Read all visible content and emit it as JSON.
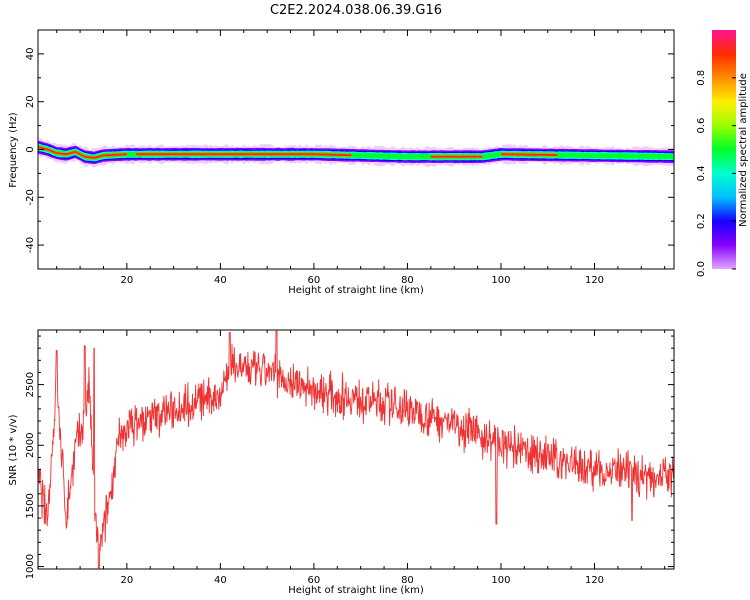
{
  "title": "C2E2.2024.038.06.39.G16",
  "chart_data": [
    {
      "type": "heatmap",
      "xlabel": "Height of straight line (km)",
      "ylabel": "Frequency (Hz)",
      "xlim": [
        1,
        137
      ],
      "ylim": [
        -50,
        50
      ],
      "x_ticks": [
        20,
        40,
        60,
        80,
        100,
        120
      ],
      "y_ticks": [
        -40,
        -20,
        0,
        20,
        40
      ],
      "colorbar": {
        "label": "Normalized spectral amplitude",
        "range": [
          0,
          1
        ],
        "ticks": [
          "0.0",
          "0.2",
          "0.4",
          "0.6",
          "0.8"
        ],
        "colormap": "gist_ncar",
        "colors": [
          "#dfa8ff",
          "#8a00ff",
          "#1500ff",
          "#00bfff",
          "#00ffd0",
          "#00ff2a",
          "#9aff00",
          "#ffee00",
          "#ff8c00",
          "#ff2a00",
          "#ff1493"
        ]
      },
      "band": {
        "center_hz": [
          {
            "x": 1,
            "y": 1
          },
          {
            "x": 3,
            "y": 0
          },
          {
            "x": 5,
            "y": -1.5
          },
          {
            "x": 7,
            "y": -2
          },
          {
            "x": 9,
            "y": -1
          },
          {
            "x": 11,
            "y": -3
          },
          {
            "x": 13,
            "y": -3.5
          },
          {
            "x": 15,
            "y": -2.5
          },
          {
            "x": 20,
            "y": -2
          },
          {
            "x": 40,
            "y": -2
          },
          {
            "x": 60,
            "y": -2
          },
          {
            "x": 80,
            "y": -3
          },
          {
            "x": 96,
            "y": -3
          },
          {
            "x": 100,
            "y": -2
          },
          {
            "x": 137,
            "y": -3
          }
        ],
        "high_amplitude_ranges_km": [
          [
            1,
            20
          ],
          [
            22,
            68
          ],
          [
            85,
            96
          ],
          [
            100,
            112
          ]
        ]
      }
    },
    {
      "type": "line",
      "xlabel": "Height of straight line (km)",
      "ylabel": "SNR (10 * v/v)",
      "xlim": [
        1,
        137
      ],
      "ylim": [
        980,
        2950
      ],
      "x_ticks": [
        20,
        40,
        60,
        80,
        100,
        120
      ],
      "y_ticks": [
        1000,
        1500,
        2000,
        2500
      ],
      "color": "#f03232",
      "trend": [
        {
          "x": 1,
          "y": 1750
        },
        {
          "x": 3,
          "y": 1400
        },
        {
          "x": 5,
          "y": 2500
        },
        {
          "x": 7,
          "y": 1400
        },
        {
          "x": 9,
          "y": 2000
        },
        {
          "x": 11,
          "y": 2200
        },
        {
          "x": 12,
          "y": 2500
        },
        {
          "x": 13,
          "y": 1500
        },
        {
          "x": 14,
          "y": 1100
        },
        {
          "x": 15,
          "y": 1300
        },
        {
          "x": 16,
          "y": 1500
        },
        {
          "x": 18,
          "y": 2000
        },
        {
          "x": 20,
          "y": 2150
        },
        {
          "x": 30,
          "y": 2300
        },
        {
          "x": 40,
          "y": 2420
        },
        {
          "x": 42,
          "y": 2650
        },
        {
          "x": 50,
          "y": 2600
        },
        {
          "x": 60,
          "y": 2450
        },
        {
          "x": 70,
          "y": 2380
        },
        {
          "x": 80,
          "y": 2300
        },
        {
          "x": 90,
          "y": 2180
        },
        {
          "x": 100,
          "y": 2000
        },
        {
          "x": 110,
          "y": 1900
        },
        {
          "x": 120,
          "y": 1800
        },
        {
          "x": 130,
          "y": 1750
        },
        {
          "x": 137,
          "y": 1750
        }
      ],
      "noise_amplitude": 140,
      "spikes": [
        {
          "x": 5,
          "y": 2780
        },
        {
          "x": 11,
          "y": 2820
        },
        {
          "x": 13,
          "y": 2800
        },
        {
          "x": 14,
          "y": 990
        },
        {
          "x": 42,
          "y": 2930
        },
        {
          "x": 52,
          "y": 2940
        },
        {
          "x": 99,
          "y": 1350
        },
        {
          "x": 128,
          "y": 1380
        }
      ]
    }
  ]
}
